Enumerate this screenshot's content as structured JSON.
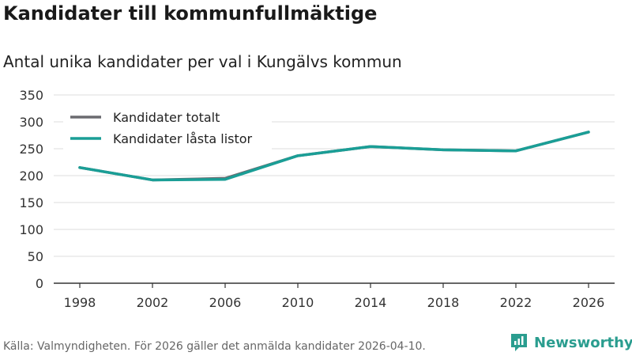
{
  "title": "Kandidater till kommunfullmäktige",
  "subtitle": "Antal unika kandidater per val i Kungälvs kommun",
  "source": "Källa: Valmyndigheten. För 2026 gäller det anmälda kandidater 2026-04-10.",
  "brand": "Newsworthy",
  "colors": {
    "total": "#6b6b70",
    "locked": "#1a9e96",
    "grid": "#dddddd",
    "axis": "#333333"
  },
  "chart_data": {
    "type": "line",
    "title": "Kandidater till kommunfullmäktige",
    "subtitle": "Antal unika kandidater per val i Kungälvs kommun",
    "xlabel": "",
    "ylabel": "",
    "x": [
      1998,
      2002,
      2006,
      2010,
      2014,
      2018,
      2022,
      2026
    ],
    "x_ticks": [
      "1998",
      "2002",
      "2006",
      "2010",
      "2014",
      "2018",
      "2022",
      "2026"
    ],
    "y_ticks": [
      "0",
      "50",
      "100",
      "150",
      "200",
      "250",
      "300",
      "350"
    ],
    "ylim": [
      0,
      350
    ],
    "grid": true,
    "legend_position": "top-left",
    "series": [
      {
        "name": "Kandidater totalt",
        "color": "#6b6b70",
        "values": [
          215,
          192,
          195,
          237,
          254,
          248,
          246,
          281
        ]
      },
      {
        "name": "Kandidater låsta listor",
        "color": "#1a9e96",
        "values": [
          215,
          192,
          193,
          237,
          254,
          248,
          246,
          281
        ]
      }
    ]
  }
}
